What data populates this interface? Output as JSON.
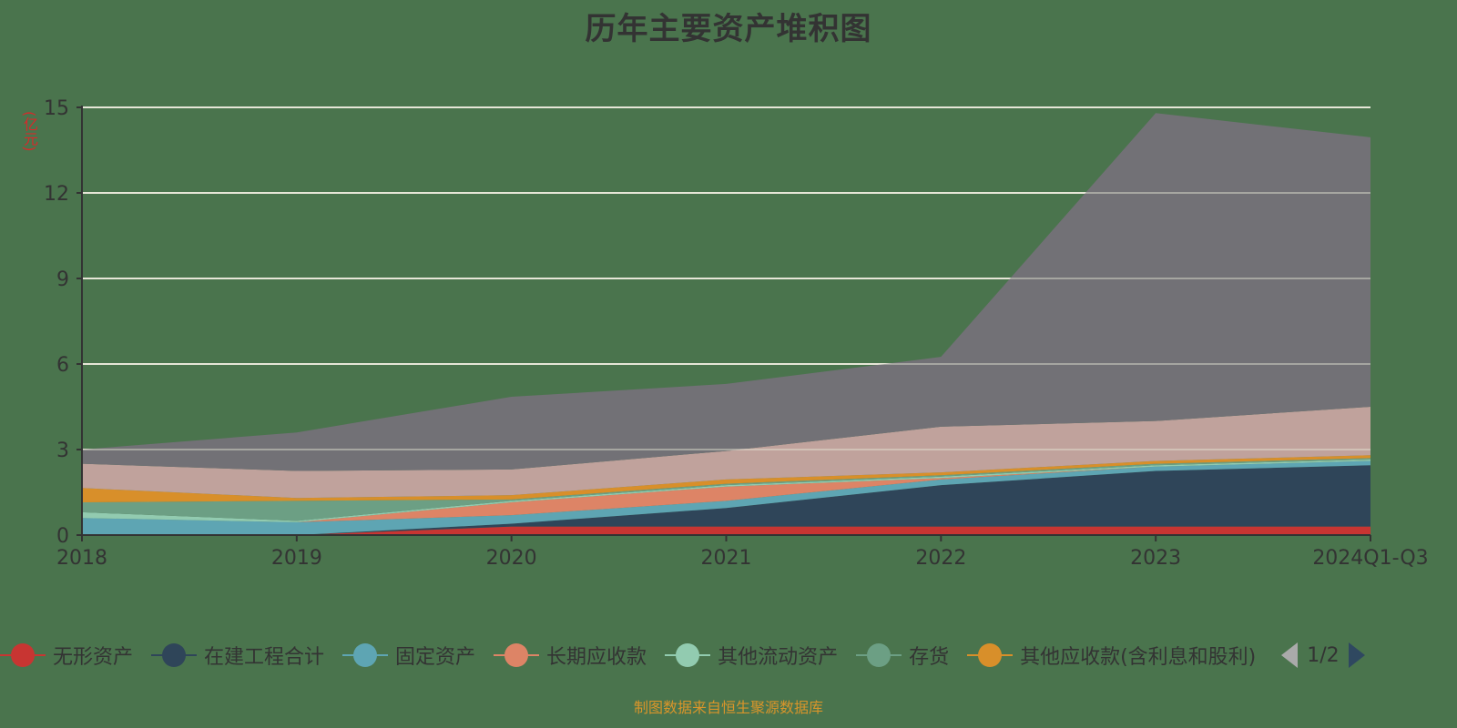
{
  "title": "历年主要资产堆积图",
  "unit_label": "(亿元)",
  "source_note": "制图数据来自恒生聚源数据库",
  "legend": {
    "items": [
      {
        "label": "无形资产",
        "color": "#c83532"
      },
      {
        "label": "在建工程合计",
        "color": "#2f4559"
      },
      {
        "label": "固定资产",
        "color": "#5ea5b3"
      },
      {
        "label": "长期应收款",
        "color": "#dd8466"
      },
      {
        "label": "其他流动资产",
        "color": "#92cbb0"
      },
      {
        "label": "存货",
        "color": "#6c9f84"
      },
      {
        "label": "其他应收款(含利息和股利)",
        "color": "#d88f2a"
      }
    ],
    "page_text": "1/2"
  },
  "chart_data": {
    "type": "area",
    "stacked": true,
    "title": "历年主要资产堆积图",
    "xlabel": "",
    "ylabel": "(亿元)",
    "ylim": [
      0,
      15
    ],
    "yticks": [
      0,
      3,
      6,
      9,
      12,
      15
    ],
    "grid": true,
    "legend_position": "bottom",
    "categories": [
      "2018",
      "2019",
      "2020",
      "2021",
      "2022",
      "2023",
      "2024Q1-Q3"
    ],
    "series": [
      {
        "name": "无形资产",
        "color": "#c83532",
        "values": [
          0.0,
          0.0,
          0.3,
          0.3,
          0.3,
          0.3,
          0.3
        ]
      },
      {
        "name": "在建工程合计",
        "color": "#2f4559",
        "values": [
          0.0,
          0.0,
          0.1,
          0.65,
          1.45,
          1.95,
          2.15
        ]
      },
      {
        "name": "固定资产",
        "color": "#5ea5b3",
        "values": [
          0.6,
          0.45,
          0.3,
          0.25,
          0.2,
          0.15,
          0.15
        ]
      },
      {
        "name": "长期应收款",
        "color": "#dd8466",
        "values": [
          0.0,
          0.0,
          0.45,
          0.5,
          0.05,
          0.0,
          0.0
        ]
      },
      {
        "name": "其他流动资产",
        "color": "#92cbb0",
        "values": [
          0.2,
          0.05,
          0.05,
          0.05,
          0.05,
          0.05,
          0.05
        ]
      },
      {
        "name": "存货",
        "color": "#6c9f84",
        "values": [
          0.35,
          0.7,
          0.05,
          0.05,
          0.05,
          0.05,
          0.05
        ]
      },
      {
        "name": "其他应收款(含利息和股利)",
        "color": "#d88f2a",
        "values": [
          0.5,
          0.1,
          0.15,
          0.15,
          0.1,
          0.1,
          0.1
        ]
      },
      {
        "name": "",
        "color": "#c0a29c",
        "values": [
          0.85,
          0.95,
          0.9,
          1.0,
          1.6,
          1.4,
          1.7
        ]
      },
      {
        "name": "",
        "color": "#727176",
        "values": [
          0.5,
          1.35,
          2.55,
          2.35,
          2.45,
          10.8,
          9.45
        ]
      }
    ]
  }
}
